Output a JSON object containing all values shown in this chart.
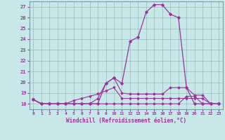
{
  "xlabel": "Windchill (Refroidissement éolien,°C)",
  "bg_color": "#c8e8e8",
  "line_color": "#993399",
  "grid_color": "#99bbbb",
  "xlim": [
    -0.5,
    23.5
  ],
  "ylim": [
    17.5,
    27.5
  ],
  "xticks": [
    0,
    1,
    2,
    3,
    4,
    5,
    6,
    7,
    8,
    9,
    10,
    11,
    12,
    13,
    14,
    15,
    16,
    17,
    18,
    19,
    20,
    21,
    22,
    23
  ],
  "yticks": [
    18,
    19,
    20,
    21,
    22,
    23,
    24,
    25,
    26,
    27
  ],
  "line_main": [
    18.4,
    18.0,
    18.0,
    18.0,
    18.0,
    18.0,
    18.0,
    18.0,
    18.0,
    19.9,
    20.4,
    19.9,
    23.8,
    24.2,
    26.5,
    27.2,
    27.2,
    26.3,
    26.0,
    19.5,
    18.0,
    18.0,
    18.0,
    18.0
  ],
  "line_b": [
    18.4,
    18.0,
    18.0,
    18.0,
    18.0,
    18.0,
    18.0,
    18.0,
    18.5,
    19.9,
    20.4,
    19.0,
    18.9,
    18.9,
    18.9,
    18.9,
    18.9,
    19.5,
    19.5,
    19.5,
    18.8,
    18.8,
    18.0,
    18.0
  ],
  "line_c": [
    18.4,
    18.0,
    18.0,
    18.0,
    18.0,
    18.3,
    18.5,
    18.7,
    18.9,
    19.2,
    19.5,
    18.5,
    18.5,
    18.5,
    18.5,
    18.5,
    18.5,
    18.5,
    18.5,
    18.5,
    18.5,
    18.5,
    18.0,
    18.0
  ],
  "line_d": [
    18.4,
    18.0,
    18.0,
    18.0,
    18.0,
    18.0,
    18.0,
    18.0,
    18.0,
    18.0,
    18.0,
    18.0,
    18.0,
    18.0,
    18.0,
    18.0,
    18.0,
    18.0,
    18.0,
    18.7,
    18.7,
    18.0,
    18.0,
    18.0
  ]
}
